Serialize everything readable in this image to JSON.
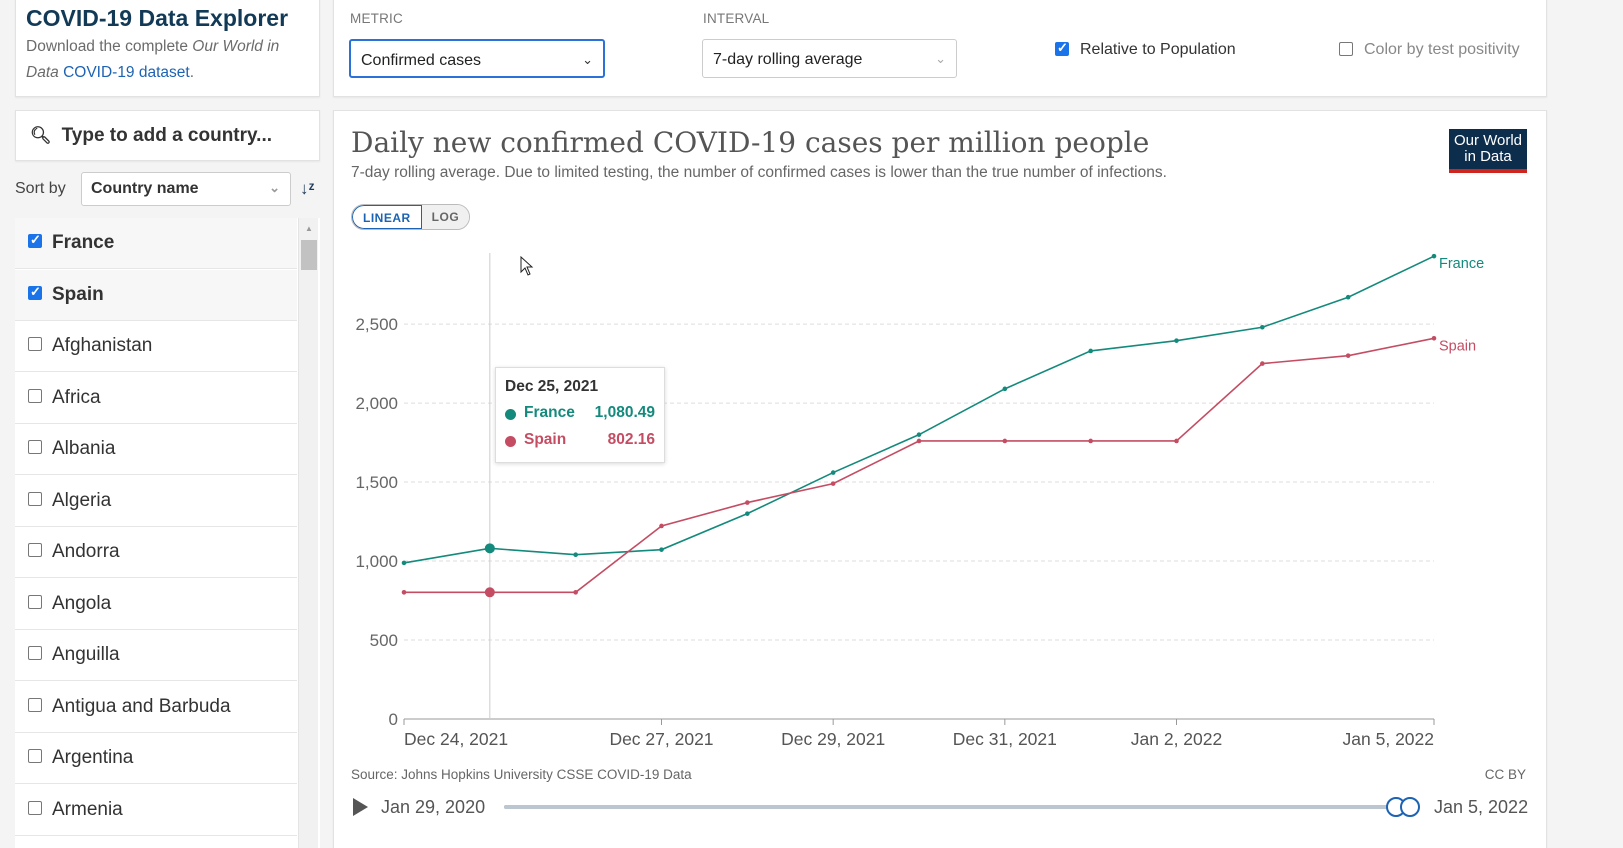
{
  "app": {
    "title": "COVID-19 Data Explorer",
    "desc_prefix": "Download the complete ",
    "desc_em": "Our World in Data",
    "desc_link": "COVID-19 dataset",
    "desc_suffix": "."
  },
  "controls": {
    "metric_label": "METRIC",
    "metric_value": "Confirmed cases",
    "interval_label": "INTERVAL",
    "interval_value": "7-day rolling average",
    "relative_label": "Relative to Population",
    "relative_checked": true,
    "color_label": "Color by test positivity",
    "color_checked": false
  },
  "sidebar": {
    "search_placeholder": "Type to add a country...",
    "sort_label": "Sort by",
    "sort_value": "Country name",
    "countries": [
      {
        "name": "France",
        "checked": true
      },
      {
        "name": "Spain",
        "checked": true
      },
      {
        "name": "Afghanistan",
        "checked": false
      },
      {
        "name": "Africa",
        "checked": false
      },
      {
        "name": "Albania",
        "checked": false
      },
      {
        "name": "Algeria",
        "checked": false
      },
      {
        "name": "Andorra",
        "checked": false
      },
      {
        "name": "Angola",
        "checked": false
      },
      {
        "name": "Anguilla",
        "checked": false
      },
      {
        "name": "Antigua and Barbuda",
        "checked": false
      },
      {
        "name": "Argentina",
        "checked": false
      },
      {
        "name": "Armenia",
        "checked": false
      }
    ]
  },
  "chart": {
    "title": "Daily new confirmed COVID-19 cases per million people",
    "subtitle": "7-day rolling average. Due to limited testing, the number of confirmed cases is lower than the true number of infections.",
    "logo_line1": "Our World",
    "logo_line2": "in Data",
    "scale_linear": "LINEAR",
    "scale_log": "LOG",
    "source": "Source: Johns Hopkins University CSSE COVID-19 Data",
    "license": "CC BY",
    "timeline_start": "Jan 29, 2020",
    "timeline_end": "Jan 5, 2022",
    "tooltip": {
      "date": "Dec 25, 2021",
      "rows": [
        {
          "name": "France",
          "value": "1,080.49",
          "color": "#138a7c"
        },
        {
          "name": "Spain",
          "value": "802.16",
          "color": "#c44d63"
        }
      ]
    }
  },
  "chart_data": {
    "type": "line",
    "title": "Daily new confirmed COVID-19 cases per million people",
    "x": [
      "2021-12-24",
      "2021-12-25",
      "2021-12-26",
      "2021-12-27",
      "2021-12-28",
      "2021-12-29",
      "2021-12-30",
      "2021-12-31",
      "2022-01-01",
      "2022-01-02",
      "2022-01-03",
      "2022-01-04",
      "2022-01-05"
    ],
    "x_tick_labels": [
      "Dec 24, 2021",
      "Dec 27, 2021",
      "Dec 29, 2021",
      "Dec 31, 2021",
      "Jan 2, 2022",
      "Jan 5, 2022"
    ],
    "x_tick_dates": [
      "2021-12-24",
      "2021-12-27",
      "2021-12-29",
      "2021-12-31",
      "2022-01-02",
      "2022-01-05"
    ],
    "y_ticks": [
      0,
      500,
      1000,
      1500,
      2000,
      2500
    ],
    "y_tick_labels": [
      "0",
      "500",
      "1,000",
      "1,500",
      "2,000",
      "2,500"
    ],
    "ylim": [
      0,
      2950
    ],
    "grid": true,
    "legend": "inline-right",
    "highlight_date": "2021-12-25",
    "series": [
      {
        "name": "France",
        "color": "#138a7c",
        "values": [
          988,
          1080.49,
          1040,
          1072,
          1300,
          1560,
          1800,
          2090,
          2330,
          2395,
          2480,
          2670,
          2930
        ]
      },
      {
        "name": "Spain",
        "color": "#c44d63",
        "values": [
          802,
          802.16,
          802,
          1222,
          1370,
          1490,
          1760,
          1760,
          1760,
          1760,
          2250,
          2300,
          2410
        ]
      }
    ]
  }
}
